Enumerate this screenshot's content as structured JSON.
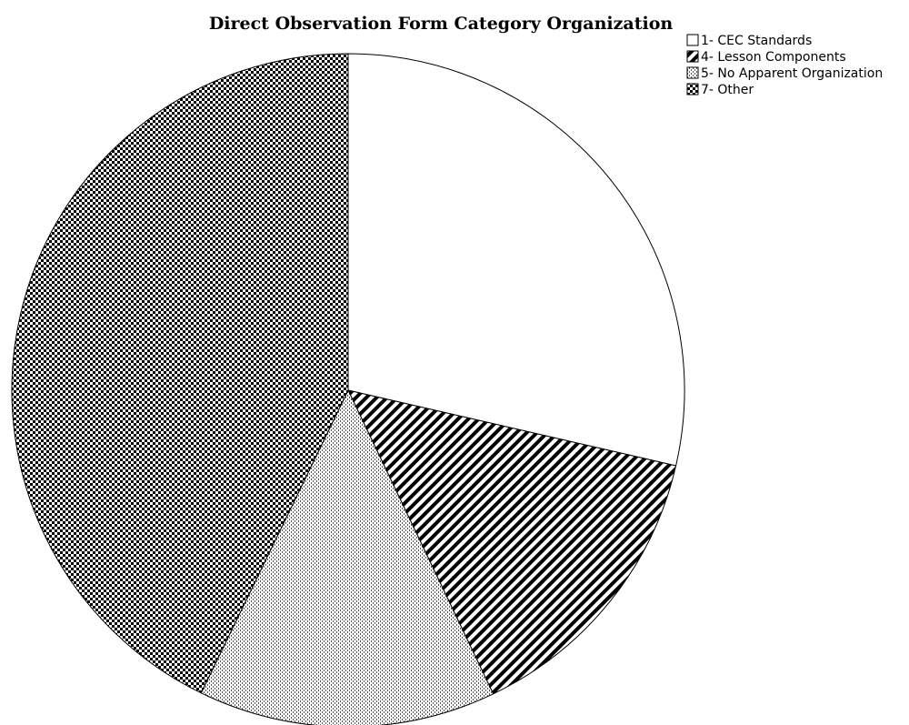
{
  "chart_data": {
    "type": "pie",
    "title": "Direct Observation Form Category Organization",
    "start_angle_deg": 0,
    "direction": "clockwise",
    "legend_position": "top-right",
    "slices": [
      {
        "label": "1- CEC Standards",
        "value": 28.6,
        "pattern": "none"
      },
      {
        "label": "4- Lesson Components",
        "value": 14.3,
        "pattern": "diagonal-stripes"
      },
      {
        "label": "5- No Apparent Organization",
        "value": 14.3,
        "pattern": "dotted-vertical"
      },
      {
        "label": "7- Other",
        "value": 42.8,
        "pattern": "checkerboard"
      }
    ]
  }
}
